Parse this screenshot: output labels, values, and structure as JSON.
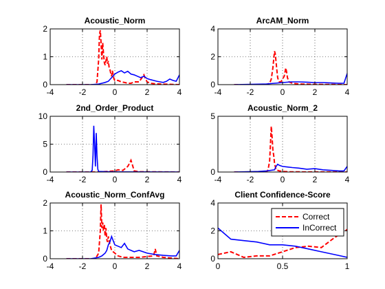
{
  "colors": {
    "correct": "#ff0000",
    "incorrect": "#0000ff",
    "axis": "#000000"
  },
  "chart_data": [
    {
      "type": "line",
      "title": "Acoustic_Norm",
      "xlim": [
        -4,
        4
      ],
      "ylim": [
        0,
        2
      ],
      "xticks": [
        "-4",
        "-2",
        "0",
        "2",
        "4"
      ],
      "yticks": [
        "0",
        "1",
        "2"
      ],
      "xtick_values": [
        -4,
        -2,
        0,
        2,
        4
      ],
      "ytick_values": [
        0,
        1,
        2
      ],
      "grid": true,
      "series": [
        {
          "style": "dashed",
          "color": "#ff0000",
          "x": [
            -3,
            -1.2,
            -1.1,
            -1.0,
            -0.95,
            -0.9,
            -0.85,
            -0.8,
            -0.75,
            -0.7,
            -0.65,
            -0.6,
            -0.55,
            -0.5,
            -0.45,
            -0.4,
            -0.35,
            -0.3,
            -0.25,
            -0.2,
            -0.15,
            -0.1,
            -0.05,
            0,
            0.2,
            0.4,
            0.6,
            0.8,
            1.0,
            1.2,
            1.5,
            1.8,
            1.9,
            2.0,
            2.2,
            2.5,
            3.0,
            4
          ],
          "y": [
            0,
            0,
            0.1,
            0.9,
            1.8,
            1.95,
            1.5,
            0.9,
            1.5,
            1.1,
            0.8,
            0.7,
            0.85,
            1.0,
            0.75,
            0.85,
            0.6,
            0.55,
            0.4,
            0.3,
            0.5,
            0.35,
            0.2,
            0.15,
            0.15,
            0.1,
            0.08,
            0.05,
            0.05,
            0.1,
            0.1,
            0.35,
            0.2,
            0.1,
            0.05,
            0.03,
            0.02,
            0
          ]
        },
        {
          "style": "solid",
          "color": "#0000ff",
          "x": [
            -3,
            -1.5,
            -1.0,
            -0.8,
            -0.6,
            -0.4,
            -0.2,
            0,
            0.2,
            0.4,
            0.6,
            0.8,
            1.0,
            1.2,
            1.4,
            1.6,
            1.8,
            2.0,
            2.2,
            2.4,
            2.6,
            2.8,
            3.0,
            3.2,
            3.4,
            3.6,
            3.8,
            4
          ],
          "y": [
            0,
            0,
            0.02,
            0.05,
            0.08,
            0.12,
            0.25,
            0.38,
            0.45,
            0.5,
            0.42,
            0.48,
            0.38,
            0.35,
            0.3,
            0.25,
            0.3,
            0.22,
            0.18,
            0.15,
            0.12,
            0.1,
            0.08,
            0.12,
            0.2,
            0.15,
            0.12,
            0.35
          ]
        }
      ]
    },
    {
      "type": "line",
      "title": "ArcAM_Norm",
      "xlim": [
        -4,
        4
      ],
      "ylim": [
        0,
        4
      ],
      "xticks": [
        "-4",
        "-2",
        "0",
        "2",
        "4"
      ],
      "yticks": [
        "0",
        "2",
        "4"
      ],
      "xtick_values": [
        -4,
        -2,
        0,
        2,
        4
      ],
      "ytick_values": [
        0,
        2,
        4
      ],
      "grid": true,
      "series": [
        {
          "style": "dashed",
          "color": "#ff0000",
          "x": [
            -3,
            -1.0,
            -0.8,
            -0.7,
            -0.6,
            -0.55,
            -0.5,
            -0.45,
            -0.4,
            -0.35,
            -0.3,
            -0.25,
            -0.2,
            -0.1,
            0,
            0.1,
            0.2,
            0.25,
            0.3,
            0.4,
            0.6,
            1.0,
            2.0,
            4
          ],
          "y": [
            0,
            0,
            0.1,
            0.4,
            1.2,
            1.8,
            2.4,
            2.2,
            1.6,
            1.0,
            0.5,
            0.3,
            0.2,
            0.2,
            0.4,
            0.6,
            1.2,
            0.9,
            0.5,
            0.2,
            0.1,
            0.05,
            0.02,
            0
          ]
        },
        {
          "style": "solid",
          "color": "#0000ff",
          "x": [
            -3,
            -1.0,
            -0.5,
            0,
            0.5,
            1.0,
            1.5,
            2.0,
            2.5,
            3.0,
            3.5,
            3.8,
            4
          ],
          "y": [
            0,
            0.05,
            0.1,
            0.15,
            0.2,
            0.2,
            0.18,
            0.15,
            0.15,
            0.12,
            0.1,
            0.1,
            0.8
          ]
        }
      ]
    },
    {
      "type": "line",
      "title": "2nd_Order_Product",
      "xlim": [
        -4,
        4
      ],
      "ylim": [
        0,
        10
      ],
      "xticks": [
        "-4",
        "-2",
        "0",
        "2",
        "4"
      ],
      "yticks": [
        "0",
        "5",
        "10"
      ],
      "xtick_values": [
        -4,
        -2,
        0,
        2,
        4
      ],
      "ytick_values": [
        0,
        5,
        10
      ],
      "grid": true,
      "series": [
        {
          "style": "dashed",
          "color": "#ff0000",
          "x": [
            -3,
            -1.0,
            -0.5,
            0,
            0.2,
            0.5,
            0.8,
            0.9,
            1.0,
            1.1,
            1.2,
            1.5,
            4
          ],
          "y": [
            0,
            0,
            0.1,
            0.2,
            0.4,
            0.3,
            1.0,
            1.5,
            2.1,
            1.2,
            0.2,
            0.05,
            0
          ]
        },
        {
          "style": "solid",
          "color": "#0000ff",
          "x": [
            -3,
            -1.5,
            -1.4,
            -1.35,
            -1.3,
            -1.25,
            -1.2,
            -1.15,
            -1.1,
            -1.05,
            -1.0,
            -0.5,
            0,
            4
          ],
          "y": [
            0,
            0,
            0.3,
            3.0,
            8.3,
            5.0,
            1.0,
            7.0,
            3.0,
            0.5,
            0.1,
            0.05,
            0.02,
            0
          ]
        }
      ]
    },
    {
      "type": "line",
      "title": "Acoustic_Norm_2",
      "xlim": [
        -4,
        4
      ],
      "ylim": [
        0,
        5
      ],
      "xticks": [
        "-4",
        "-2",
        "0",
        "2",
        "4"
      ],
      "yticks": [
        "0",
        "5"
      ],
      "xtick_values": [
        -4,
        -2,
        0,
        2,
        4
      ],
      "ytick_values": [
        0,
        5
      ],
      "grid": true,
      "series": [
        {
          "style": "dashed",
          "color": "#ff0000",
          "x": [
            -3,
            -1.0,
            -0.9,
            -0.8,
            -0.75,
            -0.7,
            -0.65,
            -0.6,
            -0.55,
            -0.5,
            -0.45,
            -0.4,
            -0.3,
            -0.2,
            0,
            0.5,
            1.0,
            4
          ],
          "y": [
            0,
            0,
            0.2,
            1.0,
            2.5,
            4.1,
            3.2,
            2.0,
            1.5,
            0.8,
            0.5,
            0.2,
            0.15,
            0.1,
            0.05,
            0.02,
            0.01,
            0
          ]
        },
        {
          "style": "solid",
          "color": "#0000ff",
          "x": [
            -3,
            -1.5,
            -1.0,
            -0.5,
            -0.4,
            -0.3,
            -0.2,
            0,
            0.3,
            0.6,
            1.0,
            1.5,
            2.0,
            2.5,
            3.0,
            3.5,
            3.8,
            4
          ],
          "y": [
            0,
            0.05,
            0.1,
            0.2,
            0.5,
            0.7,
            0.6,
            0.5,
            0.45,
            0.4,
            0.35,
            0.25,
            0.3,
            0.2,
            0.15,
            0.1,
            0.1,
            0.5
          ]
        }
      ]
    },
    {
      "type": "line",
      "title": "Acoustic_Norm_ConfAvg",
      "xlim": [
        -4,
        4
      ],
      "ylim": [
        0,
        2
      ],
      "xticks": [
        "-4",
        "-2",
        "0",
        "2",
        "4"
      ],
      "yticks": [
        "0",
        "1",
        "2"
      ],
      "xtick_values": [
        -4,
        -2,
        0,
        2,
        4
      ],
      "ytick_values": [
        0,
        1,
        2
      ],
      "grid": true,
      "series": [
        {
          "style": "dashed",
          "color": "#ff0000",
          "x": [
            -3,
            -1.2,
            -1.0,
            -0.9,
            -0.85,
            -0.8,
            -0.75,
            -0.7,
            -0.65,
            -0.6,
            -0.55,
            -0.5,
            -0.45,
            -0.4,
            -0.3,
            -0.2,
            -0.1,
            0,
            0.2,
            0.5,
            1.0,
            1.5,
            2.0,
            2.4,
            2.5,
            2.6,
            3.0,
            4
          ],
          "y": [
            0,
            0,
            0.2,
            1.0,
            1.95,
            1.1,
            1.3,
            1.0,
            1.25,
            0.8,
            1.1,
            0.7,
            0.6,
            0.8,
            0.5,
            0.3,
            0.25,
            0.2,
            0.1,
            0.05,
            0.05,
            0.05,
            0.08,
            0.1,
            0.35,
            0.1,
            0.05,
            0
          ]
        },
        {
          "style": "solid",
          "color": "#0000ff",
          "x": [
            -3,
            -1.5,
            -1.0,
            -0.8,
            -0.6,
            -0.5,
            -0.4,
            -0.3,
            -0.2,
            -0.1,
            0,
            0.2,
            0.4,
            0.6,
            0.8,
            1.0,
            1.2,
            1.5,
            2.0,
            2.5,
            3.0,
            3.5,
            3.8,
            4
          ],
          "y": [
            0,
            0,
            0.05,
            0.1,
            0.2,
            0.3,
            0.5,
            0.6,
            0.8,
            0.65,
            0.5,
            0.45,
            0.4,
            0.55,
            0.35,
            0.3,
            0.25,
            0.3,
            0.2,
            0.15,
            0.12,
            0.1,
            0.1,
            0.3
          ]
        }
      ]
    },
    {
      "type": "line",
      "title": "Client Confidence-Score",
      "xlim": [
        0,
        1
      ],
      "ylim": [
        0,
        4
      ],
      "xticks": [
        "0",
        "0.5",
        "1"
      ],
      "yticks": [
        "0",
        "2",
        "4"
      ],
      "xtick_values": [
        0,
        0.5,
        1
      ],
      "ytick_values": [
        0,
        2,
        4
      ],
      "grid": true,
      "legend": {
        "placement": "top-right",
        "entries": [
          "Correct",
          "InCorrect"
        ]
      },
      "series": [
        {
          "name": "Correct",
          "style": "dashed",
          "color": "#ff0000",
          "x": [
            0,
            0.1,
            0.2,
            0.3,
            0.4,
            0.5,
            0.6,
            0.7,
            0.8,
            0.9,
            1.0
          ],
          "y": [
            0.3,
            0.5,
            0.1,
            0.2,
            0.2,
            0.5,
            0.8,
            0.9,
            0.8,
            1.5,
            2.1
          ]
        },
        {
          "name": "InCorrect",
          "style": "solid",
          "color": "#0000ff",
          "x": [
            0,
            0.1,
            0.2,
            0.3,
            0.4,
            0.5,
            0.6,
            0.7,
            0.8,
            0.9,
            1.0
          ],
          "y": [
            2.2,
            1.4,
            1.3,
            1.2,
            1.0,
            1.0,
            0.9,
            0.7,
            0.5,
            0.3,
            0.1
          ]
        }
      ]
    }
  ]
}
